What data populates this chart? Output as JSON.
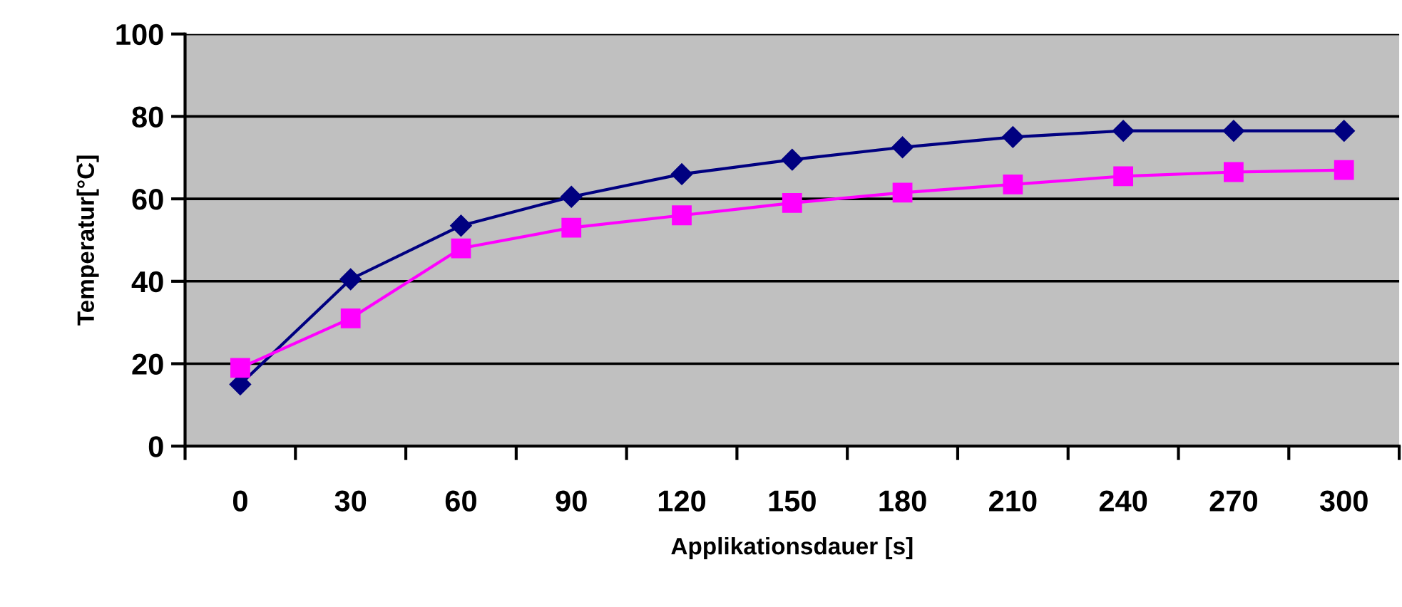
{
  "chart_data": {
    "type": "line",
    "xlabel": "Applikationsdauer [s]",
    "ylabel": "Temperatur[°C]",
    "categories": [
      "0",
      "30",
      "60",
      "90",
      "120",
      "150",
      "180",
      "210",
      "240",
      "270",
      "300"
    ],
    "series": [
      {
        "color": "#000080",
        "marker": "diamond",
        "values": [
          15,
          40.5,
          53.5,
          60.5,
          66,
          69.5,
          72.5,
          75,
          76.5,
          76.5,
          76.5
        ]
      },
      {
        "color": "#ff00ff",
        "marker": "square",
        "values": [
          19,
          31,
          48,
          53,
          56,
          59,
          61.5,
          63.5,
          65.5,
          66.5,
          67
        ]
      }
    ],
    "ylim": [
      0,
      100
    ],
    "yticks": [
      0,
      20,
      40,
      60,
      80,
      100
    ],
    "grid": "y"
  }
}
